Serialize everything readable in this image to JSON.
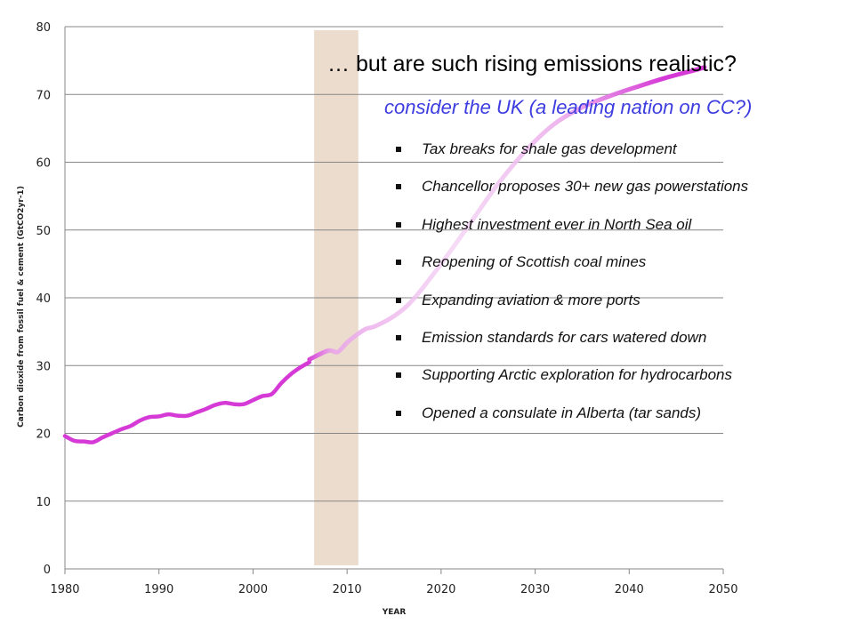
{
  "chart_data": {
    "type": "line",
    "xlabel": "YEAR",
    "ylabel": "Carbon dioxide from fossil fuel & cement (GtCO2yr-1)",
    "xlim": [
      1980,
      2050
    ],
    "ylim": [
      0,
      80
    ],
    "x_ticks": [
      "1980",
      "1990",
      "2000",
      "2010",
      "2020",
      "2030",
      "2040",
      "2050"
    ],
    "y_ticks": [
      "0",
      "10",
      "20",
      "30",
      "40",
      "50",
      "60",
      "70",
      "80"
    ],
    "grid": "horizontal",
    "highlight_band": {
      "x": [
        2006.5,
        2011.2
      ],
      "color": "#ecdccd"
    },
    "series": [
      {
        "style": "historical",
        "color": "#d63ad6",
        "x": [
          1980,
          1981,
          1982,
          1983,
          1984,
          1985,
          1986,
          1987,
          1988,
          1989,
          1990,
          1991,
          1992,
          1993,
          1994,
          1995,
          1996,
          1997,
          1998,
          1999,
          2000,
          2001,
          2002,
          2003,
          2004,
          2005,
          2006
        ],
        "y": [
          19.6,
          18.9,
          18.8,
          18.7,
          19.4,
          20.0,
          20.6,
          21.1,
          21.9,
          22.4,
          22.5,
          22.8,
          22.6,
          22.6,
          23.1,
          23.6,
          24.2,
          24.5,
          24.3,
          24.3,
          24.9,
          25.5,
          25.8,
          27.4,
          28.7,
          29.7,
          30.5
        ]
      },
      {
        "style": "projection",
        "color": "#d63ad6",
        "x": [
          2006,
          2008,
          2009,
          2010,
          2011,
          2012,
          2013,
          2015,
          2017,
          2020,
          2023,
          2026,
          2029,
          2032,
          2035,
          2038,
          2041,
          2044,
          2047,
          2048
        ],
        "y": [
          30.9,
          32.2,
          32.0,
          33.4,
          34.5,
          35.4,
          35.8,
          37.3,
          39.7,
          45.0,
          50.8,
          56.7,
          61.7,
          65.6,
          68.1,
          69.8,
          71.2,
          72.5,
          73.6,
          74.0
        ]
      }
    ]
  },
  "headline": "… but are such rising emissions realistic?",
  "subheadline": "consider the UK (a leading nation on CC?)",
  "bullets": [
    "Tax breaks for shale gas development",
    "Chancellor proposes 30+ new gas powerstations",
    "Highest investment ever in North Sea oil",
    "Reopening of Scottish coal mines",
    "Expanding aviation & more ports",
    "Emission standards for cars watered down",
    "Supporting Arctic exploration for hydrocarbons",
    "Opened a consulate in Alberta (tar sands)"
  ]
}
